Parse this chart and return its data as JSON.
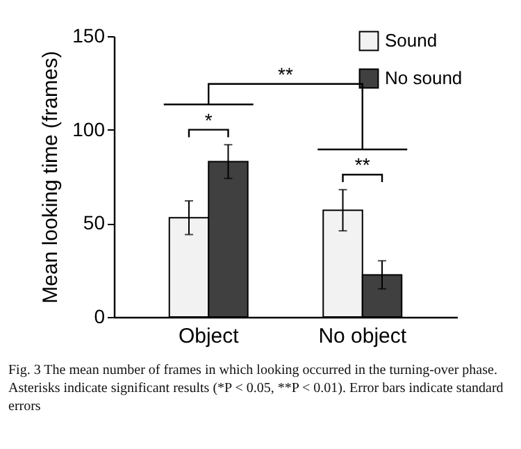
{
  "chart_data": {
    "type": "bar",
    "ylabel": "Mean looking time (frames)",
    "categories": [
      "Object",
      "No object"
    ],
    "series": [
      {
        "name": "Sound",
        "color": "#f2f2f2",
        "values": [
          53,
          57
        ],
        "errors": [
          9,
          11
        ]
      },
      {
        "name": "No sound",
        "color": "#404040",
        "values": [
          83,
          22.5
        ],
        "errors": [
          9,
          7.5
        ]
      }
    ],
    "ylim": [
      0,
      150
    ],
    "yticks": [
      0,
      50,
      100,
      150
    ],
    "grid": false,
    "legend": "top right",
    "annotations": [
      "*",
      "**",
      "**",
      "Fig. 3 The mean number of frames in which looking occurred in the turning-over phase. Asterisks indicate significant results (*P < 0.05, **P < 0.01). Error bars indicate standard errors"
    ]
  }
}
